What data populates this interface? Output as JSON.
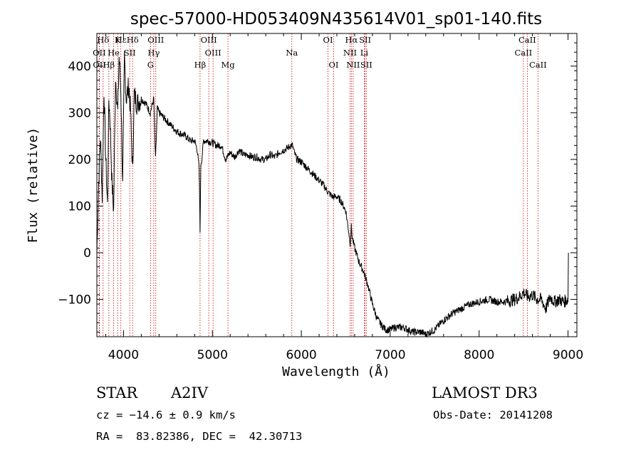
{
  "chart_data": {
    "type": "line",
    "title": "spec-57000-HD053409N435614V01_sp01-140.fits",
    "xlabel": "Wavelength (Å)",
    "ylabel": "Flux (relative)",
    "xlim": [
      3700,
      9100
    ],
    "ylim": [
      -180,
      470
    ],
    "xticks": [
      4000,
      5000,
      6000,
      7000,
      8000,
      9000
    ],
    "yticks": [
      -100,
      0,
      100,
      200,
      300,
      400
    ],
    "ytick_labels": [
      "−100",
      "0",
      "100",
      "200",
      "300",
      "400"
    ],
    "series": [
      {
        "x": [
          3700,
          3720,
          3740,
          3760,
          3780,
          3800,
          3820,
          3835,
          3850,
          3870,
          3889,
          3910,
          3935,
          3950,
          3970,
          3990,
          4010,
          4030,
          4060,
          4080,
          4102,
          4120,
          4150,
          4200,
          4250,
          4300,
          4340,
          4360,
          4380,
          4400,
          4450,
          4500,
          4550,
          4600,
          4650,
          4700,
          4750,
          4800,
          4830,
          4850,
          4861,
          4870,
          4880,
          4900,
          4950,
          5000,
          5050,
          5100,
          5150,
          5200,
          5250,
          5300,
          5350,
          5400,
          5450,
          5500,
          5550,
          5600,
          5650,
          5700,
          5750,
          5800,
          5850,
          5880,
          5900,
          5920,
          5950,
          6000,
          6050,
          6100,
          6150,
          6200,
          6250,
          6300,
          6350,
          6400,
          6450,
          6500,
          6530,
          6550,
          6563,
          6575,
          6600,
          6650,
          6700,
          6750,
          6800,
          6850,
          6900,
          6950,
          7000,
          7050,
          7100,
          7150,
          7200,
          7250,
          7300,
          7350,
          7400,
          7450,
          7500,
          7600,
          7700,
          7800,
          7900,
          8000,
          8100,
          8200,
          8300,
          8400,
          8450,
          8500,
          8550,
          8600,
          8650,
          8700,
          8750,
          8800,
          8850,
          8900,
          8950,
          9000,
          9005
        ],
        "y": [
          0,
          150,
          250,
          120,
          350,
          200,
          100,
          330,
          280,
          150,
          90,
          380,
          300,
          420,
          350,
          140,
          420,
          330,
          360,
          300,
          170,
          340,
          320,
          330,
          320,
          300,
          330,
          200,
          310,
          300,
          290,
          280,
          270,
          260,
          255,
          250,
          240,
          240,
          220,
          180,
          50,
          190,
          200,
          240,
          240,
          235,
          230,
          230,
          200,
          215,
          205,
          220,
          210,
          210,
          205,
          205,
          200,
          200,
          210,
          205,
          215,
          220,
          225,
          230,
          230,
          215,
          200,
          195,
          185,
          175,
          165,
          155,
          145,
          130,
          120,
          120,
          110,
          90,
          50,
          20,
          55,
          30,
          10,
          -20,
          -40,
          -70,
          -110,
          -140,
          -155,
          -165,
          -165,
          -160,
          -160,
          -160,
          -165,
          -170,
          -170,
          -170,
          -175,
          -170,
          -165,
          -145,
          -130,
          -120,
          -110,
          -105,
          -100,
          -105,
          -105,
          -100,
          -95,
          -85,
          -95,
          -90,
          -100,
          -100,
          -120,
          -95,
          -105,
          -100,
          -105,
          -100,
          0
        ]
      }
    ],
    "spectral_lines": [
      {
        "name": "Hδ",
        "x": 3770,
        "row": 0
      },
      {
        "name": "K",
        "x": 3934,
        "row": 0
      },
      {
        "name": "Hε",
        "x": 3970,
        "row": 0
      },
      {
        "name": "Hδ",
        "x": 4102,
        "row": 0
      },
      {
        "name": "OIII",
        "x": 4363,
        "row": 0
      },
      {
        "name": "OIII",
        "x": 4959,
        "row": 0
      },
      {
        "name": "OI",
        "x": 6300,
        "row": 0
      },
      {
        "name": "Hα",
        "x": 6563,
        "row": 0
      },
      {
        "name": "SII",
        "x": 6717,
        "row": 0
      },
      {
        "name": "CaII",
        "x": 8542,
        "row": 0
      },
      {
        "name": "OII",
        "x": 3727,
        "row": 1
      },
      {
        "name": "He",
        "x": 3889,
        "row": 1
      },
      {
        "name": "SII",
        "x": 4070,
        "row": 1
      },
      {
        "name": "Hγ",
        "x": 4340,
        "row": 1
      },
      {
        "name": "OIII",
        "x": 5007,
        "row": 1
      },
      {
        "name": "Na",
        "x": 5893,
        "row": 1
      },
      {
        "name": "NII",
        "x": 6548,
        "row": 1
      },
      {
        "name": "Li",
        "x": 6708,
        "row": 1
      },
      {
        "name": "CaII",
        "x": 8498,
        "row": 1
      },
      {
        "name": "OII",
        "x": 3729,
        "row": 2
      },
      {
        "name": "Hβ",
        "x": 3835,
        "row": 2
      },
      {
        "name": "G",
        "x": 4304,
        "row": 2
      },
      {
        "name": "Hβ",
        "x": 4861,
        "row": 2
      },
      {
        "name": "Mg",
        "x": 5175,
        "row": 2
      },
      {
        "name": "OI",
        "x": 6364,
        "row": 2
      },
      {
        "name": "NII",
        "x": 6583,
        "row": 2
      },
      {
        "name": "SII",
        "x": 6731,
        "row": 2
      },
      {
        "name": "CaII",
        "x": 8662,
        "row": 2
      }
    ],
    "line_marker_color": "#cc0000",
    "spectrum_color": "#000000",
    "grid": false
  },
  "info": {
    "class": "STAR",
    "subclass": "A2IV",
    "survey": "LAMOST DR3",
    "cz": "cz = −14.6 ± 0.9 km/s",
    "obs_date": "Obs-Date: 20141208",
    "coords": "RA =  83.82386, DEC =  42.30713"
  }
}
